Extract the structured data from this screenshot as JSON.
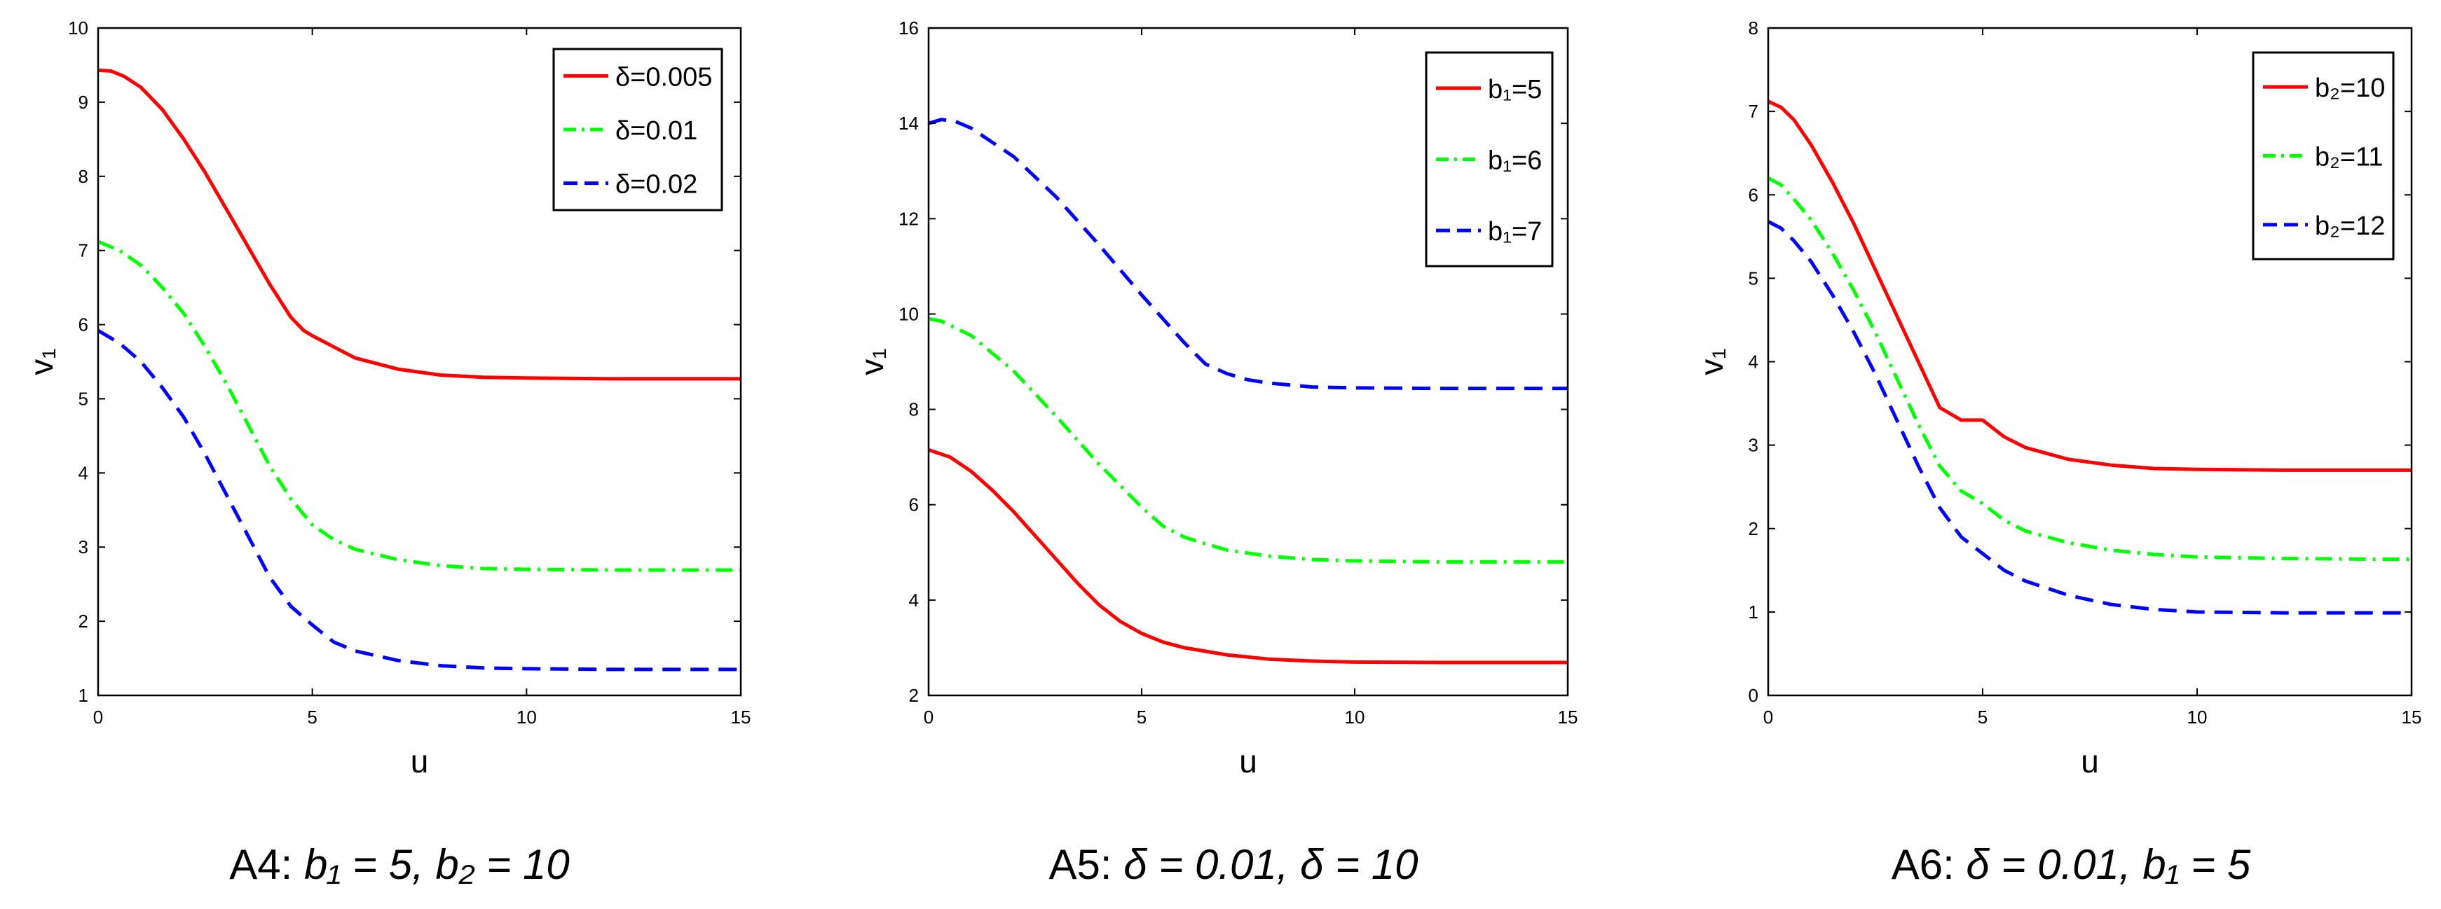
{
  "chart_data": [
    {
      "type": "line",
      "caption": {
        "prefix": "A4:",
        "expr": "b₁ = 5, b₂ = 10"
      },
      "xlabel": "u",
      "ylabel": "v₁",
      "xlim": [
        0,
        15
      ],
      "ylim": [
        1,
        10
      ],
      "xticks": [
        0,
        5,
        10,
        15
      ],
      "yticks": [
        1,
        2,
        3,
        4,
        5,
        6,
        7,
        8,
        9,
        10
      ],
      "grid": false,
      "legend_position": "top-right",
      "series": [
        {
          "name": "δ=0.005",
          "color": "#ff0000",
          "dash": "solid",
          "x": [
            0,
            0.3,
            0.6,
            1,
            1.5,
            2,
            2.5,
            3,
            3.5,
            4,
            4.5,
            4.8,
            5,
            5.5,
            6,
            7,
            8,
            9,
            10,
            12,
            15
          ],
          "y": [
            9.43,
            9.42,
            9.35,
            9.2,
            8.9,
            8.5,
            8.05,
            7.55,
            7.05,
            6.55,
            6.1,
            5.92,
            5.85,
            5.7,
            5.55,
            5.4,
            5.32,
            5.29,
            5.28,
            5.27,
            5.27
          ]
        },
        {
          "name": "δ=0.01",
          "color": "#00ff00",
          "dash": "dashdot",
          "x": [
            0,
            0.5,
            1,
            1.5,
            2,
            2.5,
            3,
            3.5,
            4,
            4.5,
            5,
            5.5,
            6,
            7,
            8,
            9,
            10,
            12,
            15
          ],
          "y": [
            7.12,
            7.0,
            6.8,
            6.5,
            6.15,
            5.7,
            5.2,
            4.65,
            4.1,
            3.65,
            3.3,
            3.1,
            2.97,
            2.83,
            2.75,
            2.71,
            2.7,
            2.69,
            2.69
          ]
        },
        {
          "name": "δ=0.02",
          "color": "#0000ff",
          "dash": "dashed",
          "x": [
            0,
            0.5,
            1,
            1.5,
            2,
            2.5,
            3,
            3.5,
            4,
            4.5,
            5,
            5.5,
            6,
            7,
            8,
            9,
            10,
            12,
            15
          ],
          "y": [
            5.92,
            5.75,
            5.5,
            5.15,
            4.75,
            4.25,
            3.7,
            3.15,
            2.6,
            2.2,
            1.95,
            1.72,
            1.6,
            1.47,
            1.4,
            1.37,
            1.36,
            1.35,
            1.35
          ]
        }
      ]
    },
    {
      "type": "line",
      "caption": {
        "prefix": "A5:",
        "expr": "δ = 0.01, δ = 10"
      },
      "xlabel": "u",
      "ylabel": "v₁",
      "xlim": [
        0,
        15
      ],
      "ylim": [
        2,
        16
      ],
      "xticks": [
        0,
        5,
        10,
        15
      ],
      "yticks": [
        2,
        4,
        6,
        8,
        10,
        12,
        14,
        16
      ],
      "grid": false,
      "legend_position": "top-right",
      "series": [
        {
          "name": "b₁=5",
          "color": "#ff0000",
          "dash": "solid",
          "x": [
            0,
            0.5,
            1,
            1.5,
            2,
            2.5,
            3,
            3.5,
            4,
            4.5,
            5,
            5.5,
            6,
            7,
            8,
            9,
            10,
            12,
            15
          ],
          "y": [
            7.15,
            7.0,
            6.7,
            6.3,
            5.85,
            5.35,
            4.85,
            4.35,
            3.9,
            3.55,
            3.3,
            3.12,
            3.0,
            2.85,
            2.76,
            2.72,
            2.7,
            2.69,
            2.69
          ]
        },
        {
          "name": "b₁=6",
          "color": "#00ff00",
          "dash": "dashdot",
          "x": [
            0,
            0.3,
            1,
            2,
            3,
            4,
            5,
            5.5,
            6,
            6.5,
            7,
            8,
            9,
            10,
            12,
            15
          ],
          "y": [
            9.9,
            9.85,
            9.55,
            8.8,
            7.85,
            6.85,
            5.95,
            5.55,
            5.32,
            5.18,
            5.05,
            4.92,
            4.85,
            4.82,
            4.8,
            4.8
          ]
        },
        {
          "name": "b₁=7",
          "color": "#0000ff",
          "dash": "dashed",
          "x": [
            0,
            0.3,
            0.6,
            1,
            2,
            3,
            4,
            5,
            6,
            6.5,
            7,
            7.5,
            8,
            9,
            10,
            12,
            15
          ],
          "y": [
            14.0,
            14.08,
            14.05,
            13.9,
            13.3,
            12.45,
            11.45,
            10.4,
            9.4,
            8.95,
            8.75,
            8.62,
            8.55,
            8.47,
            8.45,
            8.44,
            8.44
          ]
        }
      ]
    },
    {
      "type": "line",
      "caption": {
        "prefix": "A6:",
        "expr": "δ = 0.01, b₁ = 5"
      },
      "xlabel": "u",
      "ylabel": "v₁",
      "xlim": [
        0,
        15
      ],
      "ylim": [
        0,
        8
      ],
      "xticks": [
        0,
        5,
        10,
        15
      ],
      "yticks": [
        0,
        1,
        2,
        3,
        4,
        5,
        6,
        7,
        8
      ],
      "grid": false,
      "legend_position": "top-right",
      "series": [
        {
          "name": "b₂=10",
          "color": "#ff0000",
          "dash": "solid",
          "x": [
            0,
            0.3,
            0.6,
            1,
            1.5,
            2,
            2.5,
            3,
            3.5,
            4,
            4.5,
            5,
            5.5,
            6,
            7,
            8,
            9,
            10,
            12,
            15
          ],
          "y": [
            7.12,
            7.05,
            6.9,
            6.6,
            6.15,
            5.65,
            5.1,
            4.55,
            4.0,
            3.45,
            3.3,
            3.3,
            3.1,
            2.97,
            2.83,
            2.76,
            2.72,
            2.71,
            2.7,
            2.7
          ]
        },
        {
          "name": "b₂=11",
          "color": "#00ff00",
          "dash": "dashdot",
          "x": [
            0,
            0.3,
            0.6,
            1,
            1.5,
            2,
            2.5,
            3,
            3.5,
            4,
            4.5,
            5,
            5.5,
            6,
            7,
            8,
            9,
            10,
            12,
            15
          ],
          "y": [
            6.2,
            6.12,
            5.95,
            5.7,
            5.3,
            4.85,
            4.35,
            3.8,
            3.25,
            2.75,
            2.45,
            2.3,
            2.1,
            1.97,
            1.83,
            1.74,
            1.69,
            1.66,
            1.64,
            1.63
          ]
        },
        {
          "name": "b₂=12",
          "color": "#0000ff",
          "dash": "dashed",
          "x": [
            0,
            0.3,
            0.6,
            1,
            1.5,
            2,
            2.5,
            3,
            3.5,
            4,
            4.5,
            5,
            5.5,
            6,
            7,
            8,
            9,
            10,
            12,
            15
          ],
          "y": [
            5.68,
            5.6,
            5.45,
            5.2,
            4.8,
            4.35,
            3.85,
            3.3,
            2.75,
            2.25,
            1.9,
            1.7,
            1.5,
            1.37,
            1.2,
            1.09,
            1.03,
            1.0,
            0.99,
            0.99
          ]
        }
      ]
    }
  ]
}
